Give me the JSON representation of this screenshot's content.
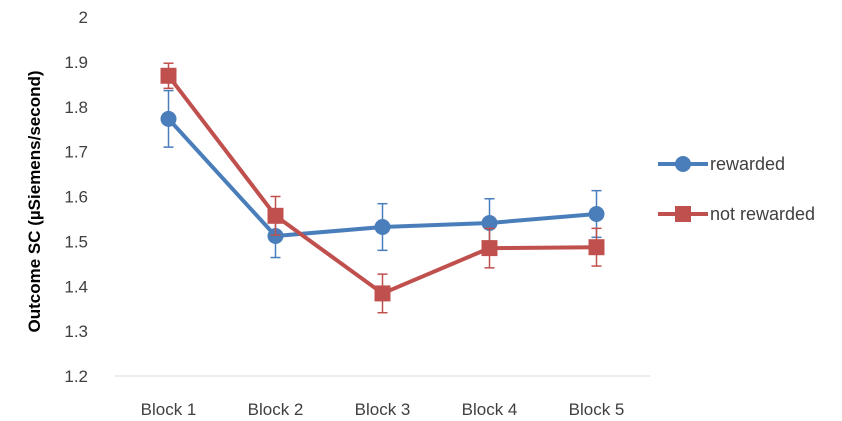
{
  "chart_data": {
    "type": "line",
    "categories": [
      "Block 1",
      "Block 2",
      "Block 3",
      "Block 4",
      "Block 5"
    ],
    "ylabel": "Outcome SC (µSiemens/second)",
    "xlabel": "",
    "title": "",
    "ylim": [
      1.2,
      2.0
    ],
    "yticks": [
      "1.2",
      "1.3",
      "1.4",
      "1.5",
      "1.6",
      "1.7",
      "1.8",
      "1.9",
      "2"
    ],
    "grid": false,
    "legend_position": "right",
    "series": [
      {
        "name": "rewarded",
        "color": "#4a7ebb",
        "marker": "circle",
        "values": [
          1.773,
          1.512,
          1.532,
          1.541,
          1.561
        ],
        "error": [
          0.063,
          0.048,
          0.052,
          0.054,
          0.052
        ]
      },
      {
        "name": "not rewarded",
        "color": "#c0504d",
        "marker": "square",
        "values": [
          1.869,
          1.557,
          1.384,
          1.485,
          1.487
        ],
        "error": [
          0.028,
          0.043,
          0.043,
          0.044,
          0.042
        ]
      }
    ]
  }
}
